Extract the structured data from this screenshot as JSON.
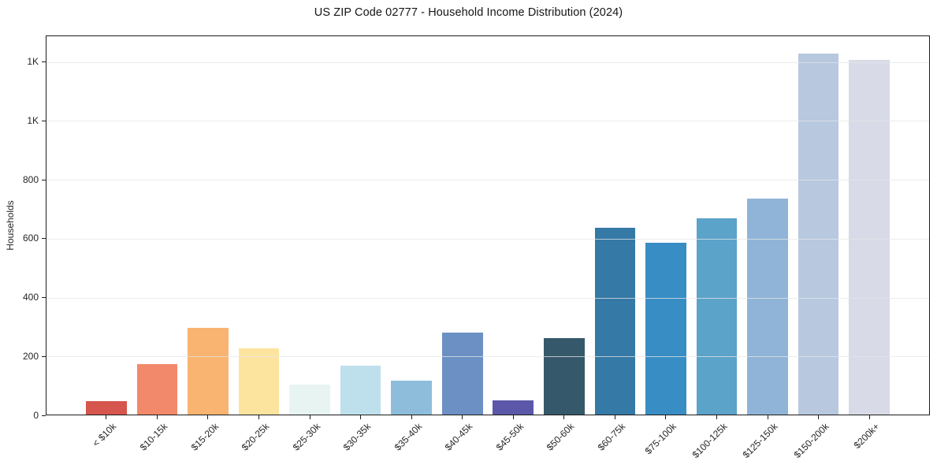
{
  "chart_data": {
    "type": "bar",
    "title": "US ZIP Code 02777 - Household Income Distribution (2024)",
    "xlabel": "",
    "ylabel": "Households",
    "categories": [
      "< $10k",
      "$10-15k",
      "$15-20k",
      "$20-25k",
      "$25-30k",
      "$30-35k",
      "$35-40k",
      "$40-45k",
      "$45-50k",
      "$50-60k",
      "$60-75k",
      "$75-100k",
      "$100-125k",
      "$125-150k",
      "$150-200k",
      "$200k+"
    ],
    "values": [
      47,
      175,
      296,
      228,
      104,
      168,
      117,
      280,
      52,
      262,
      636,
      586,
      668,
      735,
      1228,
      1206
    ],
    "bar_colors": [
      "#d6554c",
      "#f2896a",
      "#f9b471",
      "#fde49e",
      "#e8f4f1",
      "#bee0ec",
      "#8ebddc",
      "#6c90c4",
      "#5b58a9",
      "#35596b",
      "#3579a6",
      "#388dc4",
      "#5ba3c9",
      "#90b4d7",
      "#b7c8df",
      "#d8dae7"
    ],
    "ylim": [
      0,
      1290
    ],
    "yticks": {
      "values": [
        0,
        200,
        400,
        600,
        800,
        1000,
        1200
      ],
      "labels": [
        "0",
        "200",
        "400",
        "600",
        "800",
        "1K",
        "1K"
      ]
    },
    "grid": "horizontal-above-bars",
    "legend": "none",
    "frame_color": "#1c1c1c",
    "background_color": "#ffffff"
  }
}
